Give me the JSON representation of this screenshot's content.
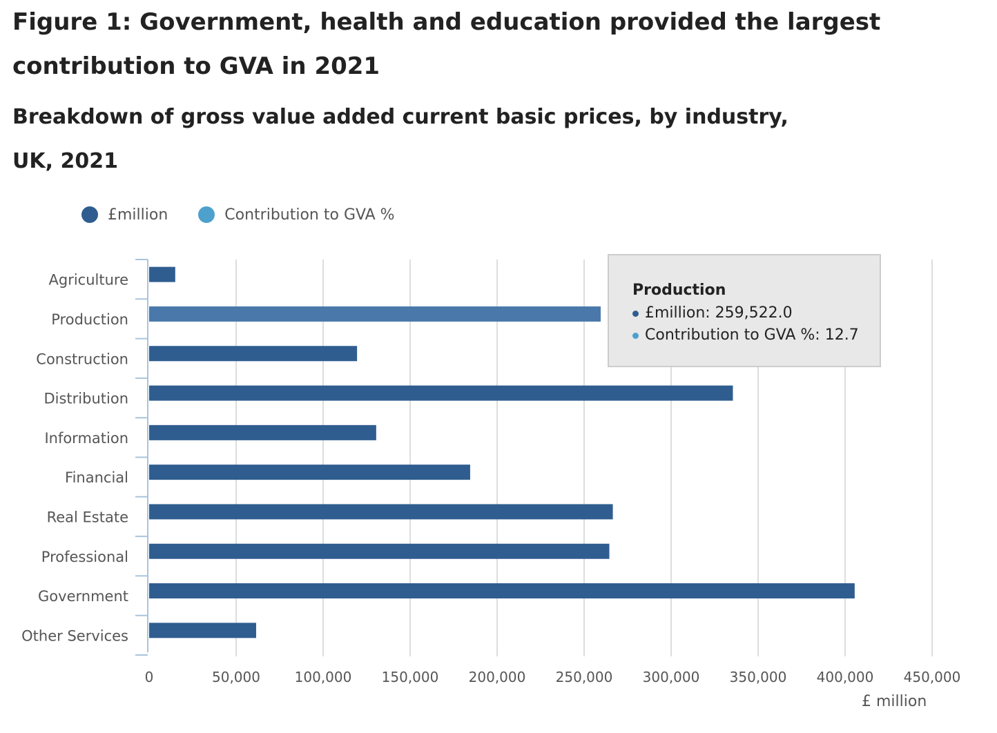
{
  "header": {
    "title": "Figure 1: Government, health and education provided the largest contribution to GVA in 2021",
    "subtitle": "Breakdown of gross value added current basic prices, by industry, UK, 2021"
  },
  "legend": {
    "items": [
      {
        "label": "£million",
        "color": "#2f5d8f"
      },
      {
        "label": "Contribution to GVA %",
        "color": "#4da1cc"
      }
    ]
  },
  "tooltip": {
    "title": "Production",
    "rows": [
      {
        "text": "£million: 259,522.0",
        "color": "#2f5d8f"
      },
      {
        "text": "Contribution to GVA %: 12.7",
        "color": "#4da1cc"
      }
    ]
  },
  "colors": {
    "bar": "#2f5d8f",
    "bar_highlight": "#4a78aa",
    "grid": "#dddddd",
    "axis": "#a8c4dc",
    "tick_text": "#555555"
  },
  "chart_data": {
    "type": "bar",
    "orientation": "horizontal",
    "title": "Figure 1: Government, health and education provided the largest contribution to GVA in 2021",
    "subtitle": "Breakdown of gross value added current basic prices, by industry, UK, 2021",
    "categories": [
      "Agriculture",
      "Production",
      "Construction",
      "Distribution",
      "Information",
      "Financial",
      "Real Estate",
      "Professional",
      "Government",
      "Other Services"
    ],
    "series": [
      {
        "name": "£million",
        "values": [
          15000,
          259522.0,
          119500,
          335500,
          130500,
          184500,
          266500,
          264500,
          405500,
          61500
        ]
      }
    ],
    "highlighted_category": "Production",
    "xlabel": "£ million",
    "xlim": [
      0,
      450000
    ],
    "xticks": [
      0,
      50000,
      100000,
      150000,
      200000,
      250000,
      300000,
      350000,
      400000,
      450000
    ],
    "xtick_labels": [
      "0",
      "50,000",
      "100,000",
      "150,000",
      "200,000",
      "250,000",
      "300,000",
      "350,000",
      "400,000",
      "450,000"
    ],
    "grid": true,
    "legend_position": "top-left"
  }
}
